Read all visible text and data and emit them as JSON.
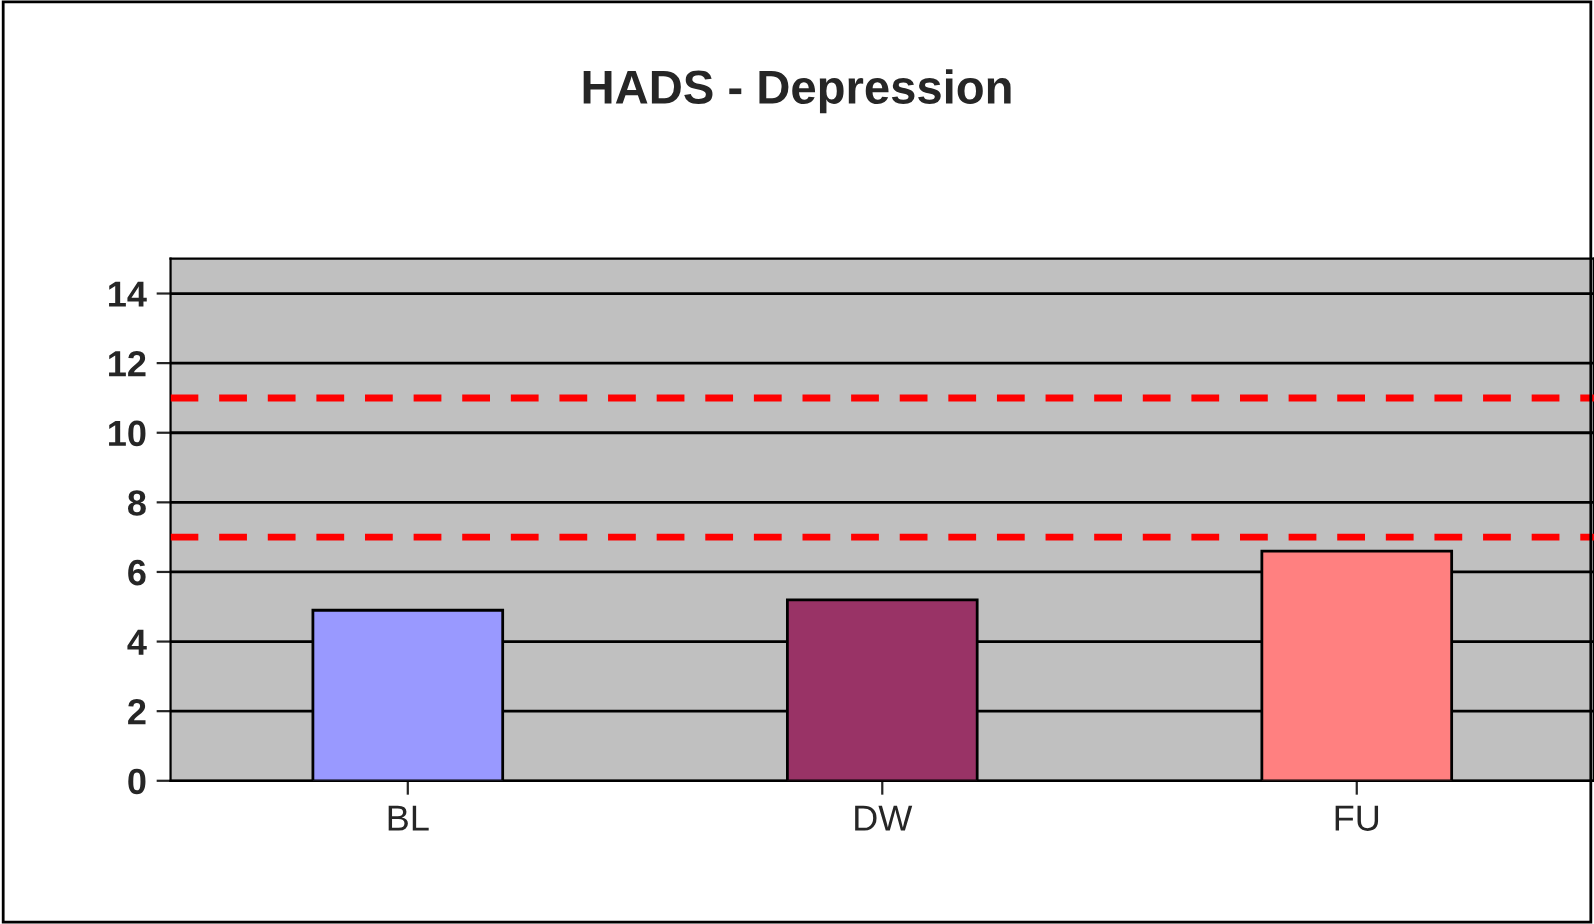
{
  "chart_data": {
    "type": "bar",
    "title": "HADS - Depression",
    "categories": [
      "BL",
      "DW",
      "FU"
    ],
    "values": [
      4.9,
      5.2,
      6.6
    ],
    "colors": [
      "#9999ff",
      "#993366",
      "#ff8080"
    ],
    "ylim": [
      0,
      15
    ],
    "yticks": [
      0,
      2,
      4,
      6,
      8,
      10,
      12,
      14
    ],
    "grid": "y",
    "ref_lines": [
      {
        "axis": "y",
        "value": 11,
        "color": "#ff0000",
        "line_style": "dashed"
      },
      {
        "axis": "y",
        "value": 7,
        "color": "#ff0000",
        "line_style": "dashed"
      }
    ]
  }
}
